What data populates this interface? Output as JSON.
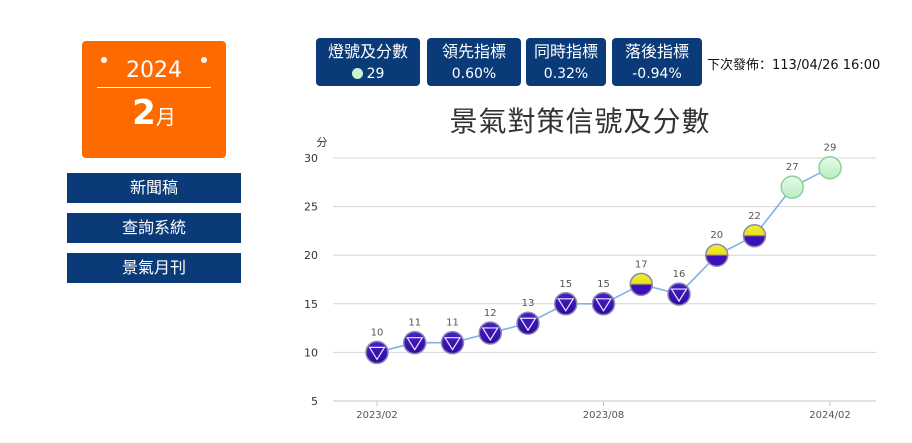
{
  "calendar": {
    "year": "2024",
    "month_num": "2",
    "month_unit": "月"
  },
  "nav": {
    "items": [
      "新聞稿",
      "查詢系統",
      "景氣月刊"
    ]
  },
  "indicators": {
    "signal": {
      "title": "燈號及分數",
      "value": "29"
    },
    "leading": {
      "title": "領先指標",
      "value": "0.60%"
    },
    "coincident": {
      "title": "同時指標",
      "value": "0.32%"
    },
    "lagging": {
      "title": "落後指標",
      "value": "-0.94%"
    },
    "next_release": "下次發佈：113/04/26 16:00"
  },
  "colors": {
    "accent": "#ff6a00",
    "navy": "#0b3a78",
    "blue_signal": "#3a10b8",
    "yellow_blue_signal": "#e8e020",
    "yellow_signal": "#e6e22a",
    "green_signal": "#c8f5cf",
    "line": "#7fb2e5"
  },
  "chart_data": {
    "type": "line",
    "title": "景氣對策信號及分數",
    "ylabel": "分",
    "xlabel": "",
    "x": [
      "2023/02",
      "2023/03",
      "2023/04",
      "2023/05",
      "2023/06",
      "2023/07",
      "2023/08",
      "2023/09",
      "2023/10",
      "2023/11",
      "2023/12",
      "2024/01",
      "2024/02"
    ],
    "values": [
      10,
      11,
      11,
      12,
      13,
      15,
      15,
      17,
      16,
      20,
      22,
      27,
      29
    ],
    "signals": [
      "blue",
      "blue",
      "blue",
      "blue",
      "blue",
      "blue",
      "blue",
      "yellow-blue",
      "blue",
      "yellow-blue",
      "yellow-blue",
      "green",
      "green"
    ],
    "yticks": [
      5,
      10,
      15,
      20,
      25,
      30
    ],
    "xticks": [
      "2023/02",
      "2023/08",
      "2024/02"
    ],
    "ylim": [
      5,
      30
    ],
    "grid": true,
    "legend": "none"
  }
}
